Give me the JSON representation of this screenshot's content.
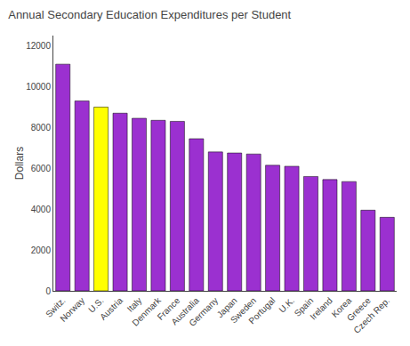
{
  "chart_data": {
    "type": "bar",
    "title": "Annual Secondary Education Expenditures per Student",
    "ylabel": "Dollars",
    "categories": [
      "Switz.",
      "Norway",
      "U.S.",
      "Austria",
      "Italy",
      "Denmark",
      "France",
      "Australia",
      "Germany",
      "Japan",
      "Sweden",
      "Portugal",
      "U.K.",
      "Spain",
      "Ireland",
      "Korea",
      "Greece",
      "Czech Rep."
    ],
    "values": [
      11100,
      9300,
      9000,
      8700,
      8450,
      8350,
      8300,
      7450,
      6800,
      6750,
      6700,
      6150,
      6100,
      5600,
      5450,
      5350,
      3950,
      3600
    ],
    "colors": [
      "#9b30d0",
      "#9b30d0",
      "#ffff00",
      "#9b30d0",
      "#9b30d0",
      "#9b30d0",
      "#9b30d0",
      "#9b30d0",
      "#9b30d0",
      "#9b30d0",
      "#9b30d0",
      "#9b30d0",
      "#9b30d0",
      "#9b30d0",
      "#9b30d0",
      "#9b30d0",
      "#9b30d0",
      "#9b30d0"
    ],
    "ylim": [
      0,
      12500
    ],
    "yticks": [
      0,
      2000,
      4000,
      6000,
      8000,
      10000,
      12000
    ],
    "grid": false
  }
}
